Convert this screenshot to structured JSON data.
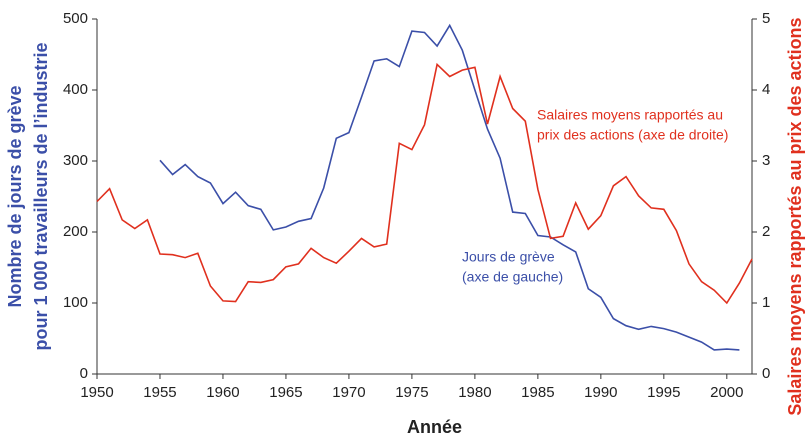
{
  "chart_data": {
    "type": "line",
    "xlabel": "Année",
    "ylabel": [
      "Nombre de jours de grève",
      "pour  1 000 travailleurs de l’industrie"
    ],
    "y2label": "Salaires moyens rapportés au prix des actions",
    "x": [
      1950,
      1951,
      1952,
      1953,
      1954,
      1955,
      1956,
      1957,
      1958,
      1959,
      1960,
      1961,
      1962,
      1963,
      1964,
      1965,
      1966,
      1967,
      1968,
      1969,
      1970,
      1971,
      1972,
      1973,
      1974,
      1975,
      1976,
      1977,
      1978,
      1979,
      1980,
      1981,
      1982,
      1983,
      1984,
      1985,
      1986,
      1987,
      1988,
      1989,
      1990,
      1991,
      1992,
      1993,
      1994,
      1995,
      1996,
      1997,
      1998,
      1999,
      2000,
      2001,
      2002
    ],
    "xlim": [
      1950,
      2002
    ],
    "xticks": [
      1950,
      1955,
      1960,
      1965,
      1970,
      1975,
      1980,
      1985,
      1990,
      1995,
      2000
    ],
    "ylim": [
      0,
      500
    ],
    "yticks": [
      0,
      100,
      200,
      300,
      400,
      500
    ],
    "y2lim": [
      0,
      5
    ],
    "y2ticks": [
      0,
      1,
      2,
      3,
      4,
      5
    ],
    "series": [
      {
        "name": "Jours de grève",
        "color": "#3b4fa8",
        "axis": "y",
        "values": [
          null,
          null,
          null,
          null,
          null,
          301,
          281,
          295,
          278,
          269,
          240,
          256,
          237,
          232,
          203,
          207,
          215,
          219,
          262,
          332,
          340,
          390,
          441,
          444,
          433,
          483,
          481,
          462,
          491,
          456,
          400,
          345,
          304,
          228,
          226,
          195,
          193,
          182,
          172,
          120,
          108,
          78,
          68,
          63,
          67,
          64,
          59,
          52,
          45,
          34,
          35,
          34,
          null
        ]
      },
      {
        "name": "Salaires moyens rapportés au prix des actions",
        "color": "#e0301e",
        "axis": "y2",
        "values": [
          2.43,
          2.61,
          2.17,
          2.05,
          2.17,
          1.69,
          1.68,
          1.64,
          1.7,
          1.24,
          1.03,
          1.02,
          1.3,
          1.29,
          1.33,
          1.51,
          1.55,
          1.77,
          1.64,
          1.56,
          1.73,
          1.91,
          1.79,
          1.83,
          3.25,
          3.16,
          3.51,
          4.36,
          4.19,
          4.28,
          4.32,
          3.52,
          4.19,
          3.74,
          3.56,
          2.6,
          1.91,
          1.94,
          2.41,
          2.04,
          2.23,
          2.65,
          2.78,
          2.51,
          2.34,
          2.32,
          2.02,
          1.55,
          1.3,
          1.18,
          1.0,
          1.28,
          1.62
        ]
      }
    ],
    "annotations": [
      {
        "lines": [
          "Jours de grève",
          "(axe de gauche)"
        ],
        "color": "#3b4fa8"
      },
      {
        "lines": [
          "Salaires moyens rapportés au",
          "prix des actions (axe de droite)"
        ],
        "color": "#e0301e"
      }
    ]
  }
}
